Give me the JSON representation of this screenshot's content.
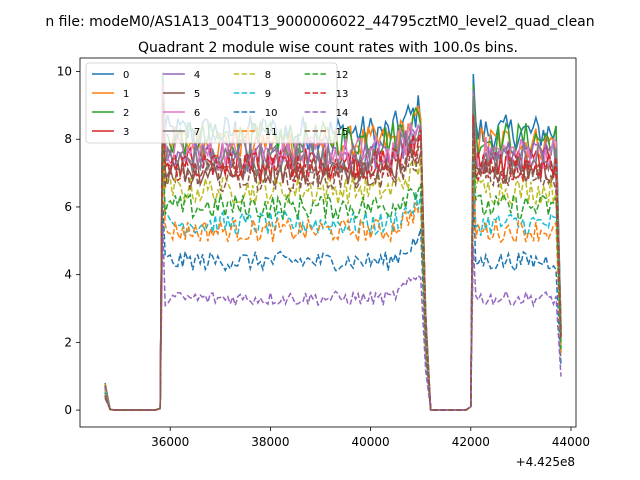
{
  "chart_data": {
    "type": "line",
    "suptitle": "n file: modeM0/AS1A13_004T13_9000006022_44795cztM0_level2_quad_clean",
    "title": "Quadrant 2 module wise count rates with 100.0s bins.",
    "xlabel": "",
    "ylabel": "",
    "x_offset_label": "+4.425e8",
    "x_range": [
      34500,
      44250
    ],
    "xlim": [
      34200,
      44100
    ],
    "ylim": [
      -0.5,
      10.4
    ],
    "xticks": [
      36000,
      38000,
      40000,
      42000,
      44000
    ],
    "yticks": [
      0,
      2,
      4,
      6,
      8,
      10
    ],
    "grid": false,
    "legend_position": "upper left",
    "legend_columns": 4,
    "segments": [
      {
        "start": 34700,
        "end": 35800,
        "active_from": 34800
      },
      {
        "start": 35800,
        "end": 41200
      },
      {
        "start": 41200,
        "end": 42000
      },
      {
        "start": 42000,
        "end": 43800
      }
    ],
    "series": [
      {
        "name": "0",
        "color": "#1f77b4",
        "dash": "solid",
        "level": 8.2
      },
      {
        "name": "1",
        "color": "#ff7f0e",
        "dash": "solid",
        "level": 7.9
      },
      {
        "name": "2",
        "color": "#2ca02c",
        "dash": "solid",
        "level": 8.0
      },
      {
        "name": "3",
        "color": "#d62728",
        "dash": "solid",
        "level": 7.3
      },
      {
        "name": "4",
        "color": "#9467bd",
        "dash": "solid",
        "level": 7.5
      },
      {
        "name": "5",
        "color": "#8c564b",
        "dash": "solid",
        "level": 7.1
      },
      {
        "name": "6",
        "color": "#e377c2",
        "dash": "solid",
        "level": 7.6
      },
      {
        "name": "7",
        "color": "#7f7f7f",
        "dash": "solid",
        "level": 7.4
      },
      {
        "name": "8",
        "color": "#bcbd22",
        "dash": "dashed",
        "level": 6.5
      },
      {
        "name": "9",
        "color": "#17becf",
        "dash": "dashed",
        "level": 5.5
      },
      {
        "name": "10",
        "color": "#1f77b4",
        "dash": "dashed",
        "level": 4.4
      },
      {
        "name": "11",
        "color": "#ff7f0e",
        "dash": "dashed",
        "level": 5.3
      },
      {
        "name": "12",
        "color": "#2ca02c",
        "dash": "dashed",
        "level": 6.0
      },
      {
        "name": "13",
        "color": "#d62728",
        "dash": "dashed",
        "level": 7.2
      },
      {
        "name": "14",
        "color": "#9467bd",
        "dash": "dashed",
        "level": 3.3
      },
      {
        "name": "15",
        "color": "#8c564b",
        "dash": "dashed",
        "level": 6.9
      }
    ]
  }
}
